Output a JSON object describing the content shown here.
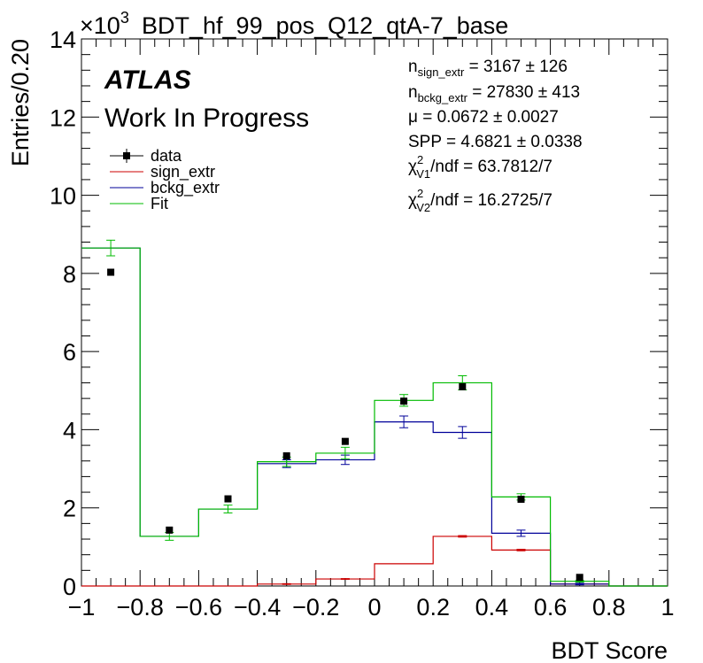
{
  "chart_data": {
    "type": "histogram",
    "title": "BDT_hf_99_pos_Q12_qtA-7_base",
    "y_exponent_label": "×10",
    "y_exponent_power": "3",
    "xlabel": "BDT Score",
    "ylabel": "Entries/0.20",
    "xlim": [
      -1,
      1
    ],
    "ylim": [
      0,
      14
    ],
    "x_tick_labels": [
      "−1",
      "−0.8",
      "−0.6",
      "−0.4",
      "−0.2",
      "0",
      "0.2",
      "0.4",
      "0.6",
      "0.8",
      "1"
    ],
    "x_ticks": [
      -1,
      -0.8,
      -0.6,
      -0.4,
      -0.2,
      0,
      0.2,
      0.4,
      0.6,
      0.8,
      1
    ],
    "y_tick_labels": [
      "0",
      "2",
      "4",
      "6",
      "8",
      "10",
      "12",
      "14"
    ],
    "y_ticks": [
      0,
      2,
      4,
      6,
      8,
      10,
      12,
      14
    ],
    "bin_edges": [
      -1,
      -0.8,
      -0.6,
      -0.4,
      -0.2,
      0,
      0.2,
      0.4,
      0.6,
      0.8,
      1
    ],
    "data_points": {
      "name": "data",
      "x": [
        -0.9,
        -0.7,
        -0.5,
        -0.3,
        -0.1,
        0.1,
        0.3,
        0.5,
        0.7
      ],
      "y": [
        8.03,
        1.43,
        2.23,
        3.33,
        3.7,
        4.73,
        5.1,
        2.22,
        0.22
      ]
    },
    "series": [
      {
        "name": "sign_extr",
        "color": "#cc0000",
        "values": [
          0.0,
          0.0,
          0.0,
          0.05,
          0.18,
          0.57,
          1.27,
          0.92,
          0.05,
          0.0
        ],
        "errors": [
          0.0,
          0.0,
          0.0,
          0.01,
          0.01,
          0.0,
          0.02,
          0.02,
          0.0,
          0.0
        ]
      },
      {
        "name": "bckg_extr",
        "color": "#000099",
        "values": [
          8.65,
          1.27,
          1.97,
          3.13,
          3.23,
          4.2,
          3.93,
          1.35,
          0.05,
          0.0
        ],
        "errors": [
          0.0,
          0.0,
          0.0,
          0.1,
          0.12,
          0.15,
          0.15,
          0.08,
          0.02,
          0.0
        ]
      },
      {
        "name": "Fit",
        "color": "#00bb00",
        "values": [
          8.65,
          1.27,
          1.97,
          3.18,
          3.4,
          4.75,
          5.2,
          2.28,
          0.12,
          0.0
        ],
        "errors": [
          0.2,
          0.1,
          0.1,
          0.12,
          0.15,
          0.15,
          0.18,
          0.08,
          0.02,
          0.0
        ]
      }
    ],
    "legend_position": "top-left",
    "grid": false
  },
  "labels": {
    "atlas": "ATLAS",
    "work_in_progress": "Work In Progress"
  },
  "legend": [
    {
      "label": "data",
      "style": "marker"
    },
    {
      "label": "sign_extr",
      "color": "#cc0000"
    },
    {
      "label": "bckg_extr",
      "color": "#000099"
    },
    {
      "label": "Fit",
      "color": "#00bb00"
    }
  ],
  "stats": {
    "n_sign_sym": "n",
    "n_sign_sub": "sign_extr",
    "n_sign_val": " = 3167 ± 126",
    "n_bckg_sym": "n",
    "n_bckg_sub": "bckg_extr",
    "n_bckg_val": " = 27830 ± 413",
    "mu": "μ = 0.0672 ± 0.0027",
    "spp": "SPP = 4.6821 ± 0.0338",
    "chi1_sym": "χ",
    "chi1_sup": "2",
    "chi1_sub": "V1",
    "chi1_val": "/ndf = 63.7812/7",
    "chi2_sym": "χ",
    "chi2_sup": "2",
    "chi2_sub": "V2",
    "chi2_val": "/ndf = 16.2725/7"
  }
}
